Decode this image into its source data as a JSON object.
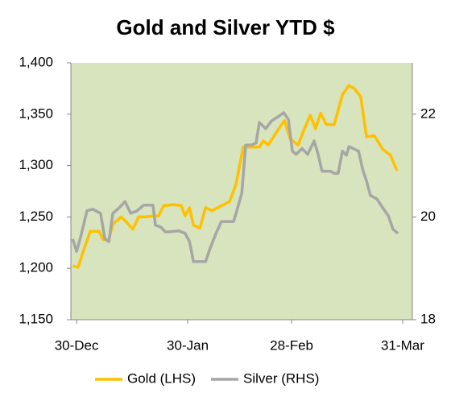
{
  "chart_data": {
    "type": "line",
    "title": "Gold and Silver YTD $",
    "xlim": [
      -1.6,
      93.7
    ],
    "xticks": [
      {
        "value": 0,
        "label": "30-Dec"
      },
      {
        "value": 31,
        "label": "30-Jan"
      },
      {
        "value": 60,
        "label": "28-Feb"
      },
      {
        "value": 91,
        "label": "31-Mar"
      }
    ],
    "ylim": [
      1150,
      1400
    ],
    "yticks": [
      {
        "value": 1150,
        "label": "1,150"
      },
      {
        "value": 1200,
        "label": "1,200"
      },
      {
        "value": 1250,
        "label": "1,250"
      },
      {
        "value": 1300,
        "label": "1,300"
      },
      {
        "value": 1350,
        "label": "1,350"
      },
      {
        "value": 1400,
        "label": "1,400"
      }
    ],
    "y2lim": [
      18,
      23
    ],
    "y2ticks": [
      18,
      20,
      22
    ],
    "background": "#d7e4bd",
    "series": [
      {
        "name": "Gold (LHS)",
        "color": "#ffc000",
        "x": [
          -1.1,
          0.4,
          2,
          3.8,
          6.3,
          7.4,
          9,
          10.1,
          12.4,
          14.2,
          15.7,
          17.3,
          19.1,
          21.3,
          22.9,
          24.3,
          27,
          29.2,
          30.3,
          31.5,
          32.6,
          34.4,
          36,
          37.8,
          40.4,
          42.7,
          44.5,
          46.5,
          49.4,
          51,
          52.1,
          53.5,
          55.7,
          58,
          59.6,
          61.8,
          63.6,
          65.2,
          66.7,
          68.1,
          69.7,
          71.9,
          74.2,
          76,
          77.5,
          79.3,
          80.9,
          83.1,
          85.4,
          87.6,
          89.4
        ],
        "values": [
          1202.5,
          1201,
          1218,
          1236,
          1236,
          1228,
          1228,
          1243,
          1250,
          1244,
          1238,
          1250,
          1250,
          1251,
          1251,
          1261,
          1262,
          1261,
          1251,
          1259,
          1242,
          1239,
          1259,
          1256,
          1261,
          1265,
          1282,
          1318,
          1318,
          1318,
          1324,
          1320,
          1332,
          1344,
          1326,
          1320,
          1336,
          1349,
          1336,
          1351,
          1340,
          1340,
          1369,
          1378,
          1375,
          1367,
          1328,
          1329,
          1316,
          1310,
          1295
        ]
      },
      {
        "name": "Silver (RHS)",
        "color": "#a6a6a6",
        "axis": "y2",
        "x": [
          -1.1,
          0,
          1.1,
          2.9,
          4.5,
          6.7,
          7.9,
          9,
          10.1,
          11.9,
          13.5,
          15.1,
          16.9,
          18.7,
          21.3,
          22,
          23.6,
          24.7,
          25.8,
          28.5,
          30.3,
          31.5,
          32.6,
          36,
          37.1,
          38.9,
          40.4,
          43.8,
          44.5,
          46.1,
          47.2,
          48.8,
          50.1,
          51,
          52.8,
          54.4,
          56.2,
          57.8,
          59.1,
          60.2,
          61.3,
          62.9,
          64.5,
          66.3,
          67.4,
          68.5,
          70.8,
          71.9,
          73,
          74.2,
          75.3,
          76,
          78.7,
          79.8,
          80.9,
          82,
          83.8,
          85.4,
          87,
          88.3,
          89.7
        ],
        "values": [
          19.57,
          19.33,
          19.6,
          20.12,
          20.15,
          20.07,
          19.57,
          19.52,
          20.07,
          20.18,
          20.3,
          20.07,
          20.12,
          20.23,
          20.23,
          19.84,
          19.8,
          19.71,
          19.71,
          19.73,
          19.68,
          19.52,
          19.13,
          19.13,
          19.36,
          19.68,
          19.91,
          19.91,
          20.07,
          20.46,
          21.4,
          21.4,
          21.44,
          21.84,
          21.72,
          21.87,
          21.95,
          22.03,
          21.9,
          21.28,
          21.22,
          21.33,
          21.22,
          21.48,
          21.22,
          20.89,
          20.89,
          20.85,
          20.85,
          21.28,
          21.2,
          21.37,
          21.28,
          20.93,
          20.7,
          20.42,
          20.35,
          20.18,
          20.02,
          19.76,
          19.68
        ]
      }
    ]
  }
}
